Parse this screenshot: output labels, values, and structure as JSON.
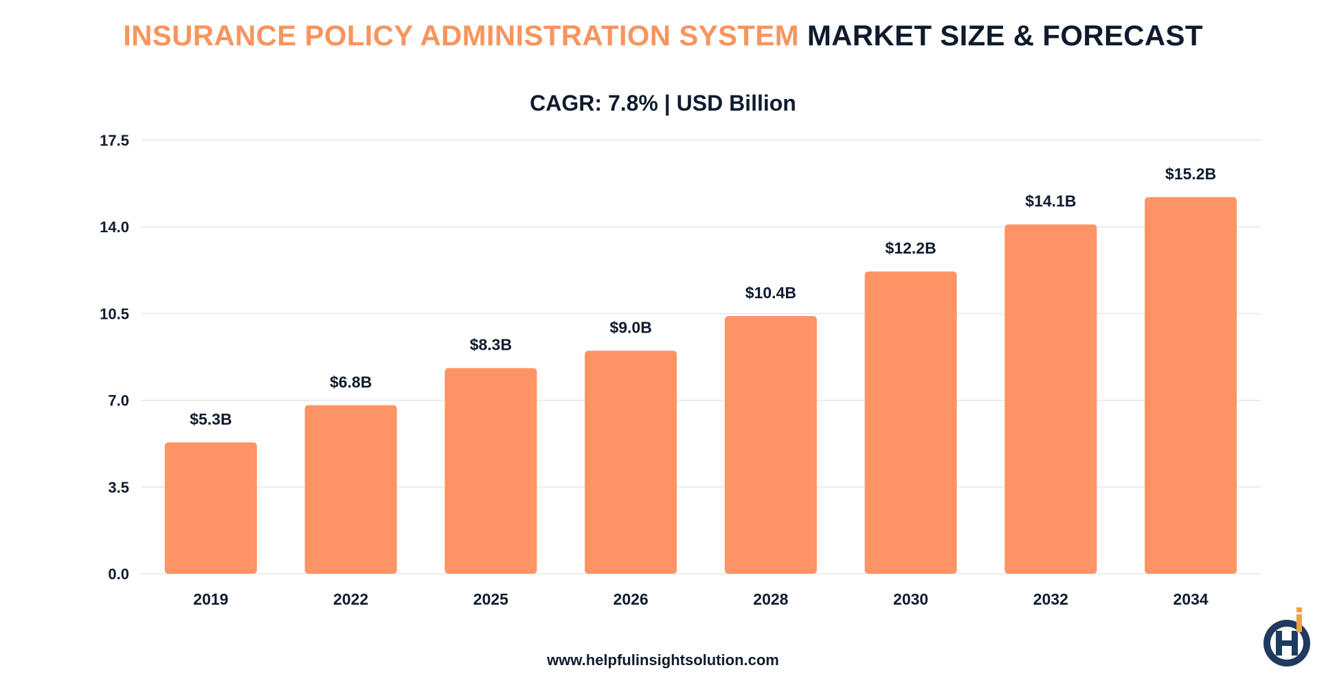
{
  "header": {
    "title_part1": "INSURANCE POLICY ADMINISTRATION SYSTEM",
    "title_part2": "MARKET SIZE & FORECAST",
    "subtitle": "CAGR: 7.8% | USD Billion"
  },
  "footer": {
    "website": "www.helpfulinsightsolution.com"
  },
  "colors": {
    "accent": "#f7955e",
    "bar": "#fe9366",
    "text": "#0f1b2d",
    "grid": "#e6e6e6",
    "logo_navy": "#1f3a5f",
    "logo_orange": "#f4a13a"
  },
  "chart_data": {
    "type": "bar",
    "categories": [
      "2019",
      "2022",
      "2025",
      "2026",
      "2028",
      "2030",
      "2032",
      "2034"
    ],
    "values": [
      5.3,
      6.8,
      8.3,
      9.0,
      10.4,
      12.2,
      14.1,
      15.2
    ],
    "data_labels": [
      "$5.3B",
      "$6.8B",
      "$8.3B",
      "$9.0B",
      "$10.4B",
      "$12.2B",
      "$14.1B",
      "$15.2B"
    ],
    "yticks": [
      "0.0",
      "3.5",
      "7.0",
      "10.5",
      "14.0",
      "17.5"
    ],
    "ylim": [
      0,
      17.5
    ],
    "grid": true
  }
}
